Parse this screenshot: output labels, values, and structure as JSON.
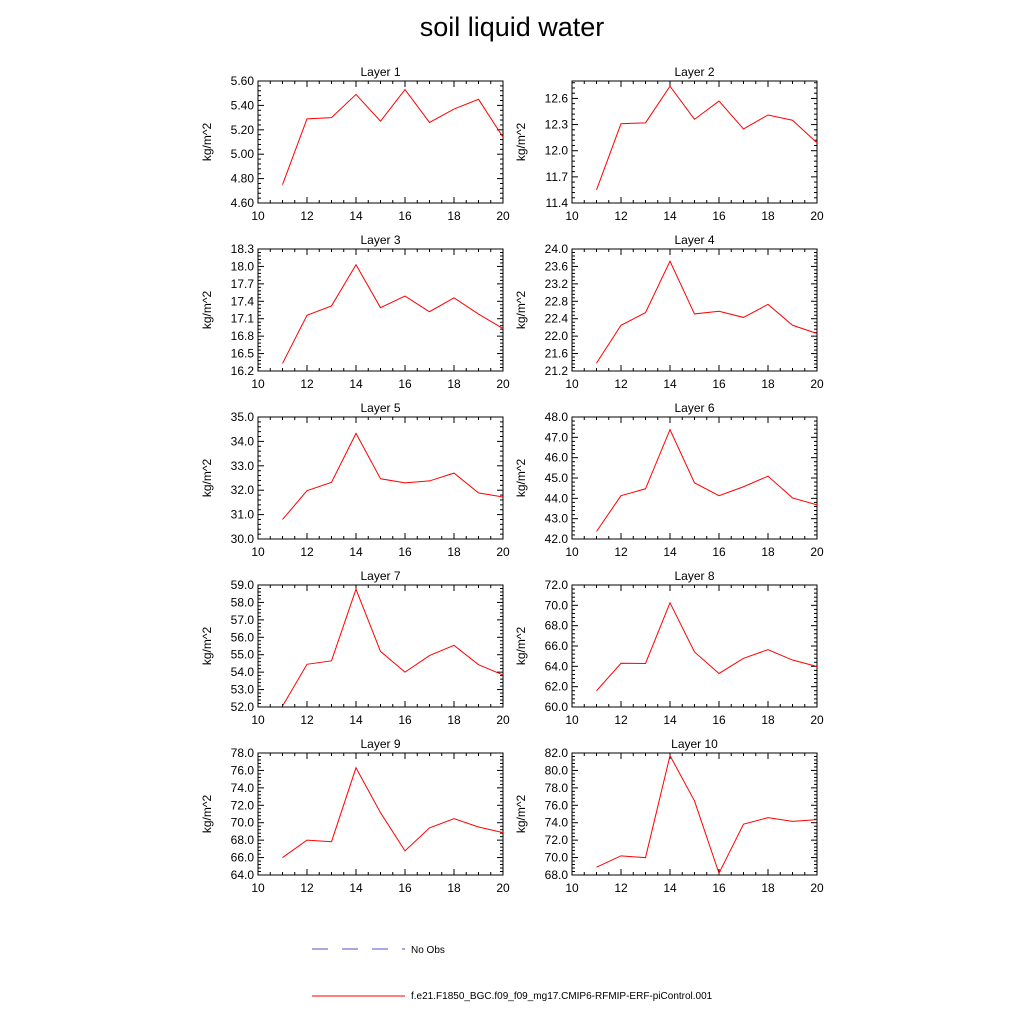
{
  "figure": {
    "title": "soil liquid water"
  },
  "legend": {
    "obs_label": "No Obs",
    "obs_color": "#5050c8",
    "model_label": "f.e21.F1850_BGC.f09_f09_mg17.CMIP6-RFMIP-ERF-piControl.001",
    "model_color": "#ff0000"
  },
  "chart_data": [
    {
      "type": "line",
      "title": "Layer 1",
      "ylabel": "kg/m^2",
      "xlim": [
        10,
        20
      ],
      "ylim": [
        4.6,
        5.6
      ],
      "xticks": [
        "10",
        "12",
        "14",
        "16",
        "18",
        "20"
      ],
      "yticks": [
        "4.60",
        "4.80",
        "5.00",
        "5.20",
        "5.40",
        "5.60"
      ],
      "x": [
        11,
        12,
        13,
        14,
        15,
        16,
        17,
        18,
        19,
        20
      ],
      "values": [
        4.75,
        5.29,
        5.3,
        5.49,
        5.27,
        5.53,
        5.26,
        5.37,
        5.45,
        5.14
      ]
    },
    {
      "type": "line",
      "title": "Layer 2",
      "ylabel": "kg/m^2",
      "xlim": [
        10,
        20
      ],
      "ylim": [
        11.4,
        12.8
      ],
      "xticks": [
        "10",
        "12",
        "14",
        "16",
        "18",
        "20"
      ],
      "yticks": [
        "11.4",
        "11.7",
        "12.0",
        "12.3",
        "12.6"
      ],
      "x": [
        11,
        12,
        13,
        14,
        15,
        16,
        17,
        18,
        19,
        20
      ],
      "values": [
        11.55,
        12.31,
        12.32,
        12.74,
        12.36,
        12.57,
        12.25,
        12.41,
        12.35,
        12.09
      ]
    },
    {
      "type": "line",
      "title": "Layer 3",
      "ylabel": "kg/m^2",
      "xlim": [
        10,
        20
      ],
      "ylim": [
        16.2,
        18.3
      ],
      "xticks": [
        "10",
        "12",
        "14",
        "16",
        "18",
        "20"
      ],
      "yticks": [
        "16.2",
        "16.5",
        "16.8",
        "17.1",
        "17.4",
        "17.7",
        "18.0",
        "18.3"
      ],
      "x": [
        11,
        12,
        13,
        14,
        15,
        16,
        17,
        18,
        19,
        20
      ],
      "values": [
        16.33,
        17.16,
        17.32,
        18.03,
        17.29,
        17.49,
        17.22,
        17.46,
        17.18,
        16.93
      ]
    },
    {
      "type": "line",
      "title": "Layer 4",
      "ylabel": "kg/m^2",
      "xlim": [
        10,
        20
      ],
      "ylim": [
        21.2,
        24.0
      ],
      "xticks": [
        "10",
        "12",
        "14",
        "16",
        "18",
        "20"
      ],
      "yticks": [
        "21.2",
        "21.6",
        "22.0",
        "22.4",
        "22.8",
        "23.2",
        "23.6",
        "24.0"
      ],
      "x": [
        11,
        12,
        13,
        14,
        15,
        16,
        17,
        18,
        19,
        20
      ],
      "values": [
        21.38,
        22.25,
        22.54,
        23.72,
        22.51,
        22.57,
        22.43,
        22.73,
        22.25,
        22.06
      ]
    },
    {
      "type": "line",
      "title": "Layer 5",
      "ylabel": "kg/m^2",
      "xlim": [
        10,
        20
      ],
      "ylim": [
        30.0,
        35.0
      ],
      "xticks": [
        "10",
        "12",
        "14",
        "16",
        "18",
        "20"
      ],
      "yticks": [
        "30.0",
        "31.0",
        "32.0",
        "33.0",
        "34.0",
        "35.0"
      ],
      "x": [
        11,
        12,
        13,
        14,
        15,
        16,
        17,
        18,
        19,
        20
      ],
      "values": [
        30.8,
        31.98,
        32.32,
        34.33,
        32.47,
        32.3,
        32.38,
        32.7,
        31.89,
        31.72
      ]
    },
    {
      "type": "line",
      "title": "Layer 6",
      "ylabel": "kg/m^2",
      "xlim": [
        10,
        20
      ],
      "ylim": [
        42.0,
        48.0
      ],
      "xticks": [
        "10",
        "12",
        "14",
        "16",
        "18",
        "20"
      ],
      "yticks": [
        "42.0",
        "43.0",
        "44.0",
        "45.0",
        "46.0",
        "47.0",
        "48.0"
      ],
      "x": [
        11,
        12,
        13,
        14,
        15,
        16,
        17,
        18,
        19,
        20
      ],
      "values": [
        42.37,
        44.13,
        44.47,
        47.38,
        44.76,
        44.13,
        44.57,
        45.09,
        44.02,
        43.68
      ]
    },
    {
      "type": "line",
      "title": "Layer 7",
      "ylabel": "kg/m^2",
      "xlim": [
        10,
        20
      ],
      "ylim": [
        52.0,
        59.0
      ],
      "xticks": [
        "10",
        "12",
        "14",
        "16",
        "18",
        "20"
      ],
      "yticks": [
        "52.0",
        "53.0",
        "54.0",
        "55.0",
        "56.0",
        "57.0",
        "58.0",
        "59.0"
      ],
      "x": [
        11,
        12,
        13,
        14,
        15,
        16,
        17,
        18,
        19,
        20
      ],
      "values": [
        52.05,
        54.45,
        54.65,
        58.76,
        55.19,
        54.0,
        54.95,
        55.54,
        54.43,
        53.84
      ]
    },
    {
      "type": "line",
      "title": "Layer 8",
      "ylabel": "kg/m^2",
      "xlim": [
        10,
        20
      ],
      "ylim": [
        60.0,
        72.0
      ],
      "xticks": [
        "10",
        "12",
        "14",
        "16",
        "18",
        "20"
      ],
      "yticks": [
        "60.0",
        "62.0",
        "64.0",
        "66.0",
        "68.0",
        "70.0",
        "72.0"
      ],
      "x": [
        11,
        12,
        13,
        14,
        15,
        16,
        17,
        18,
        19,
        20
      ],
      "values": [
        61.59,
        64.3,
        64.28,
        70.25,
        65.41,
        63.3,
        64.79,
        65.64,
        64.62,
        63.98
      ]
    },
    {
      "type": "line",
      "title": "Layer 9",
      "ylabel": "kg/m^2",
      "xlim": [
        10,
        20
      ],
      "ylim": [
        64.0,
        78.0
      ],
      "xticks": [
        "10",
        "12",
        "14",
        "16",
        "18",
        "20"
      ],
      "yticks": [
        "64.0",
        "66.0",
        "68.0",
        "70.0",
        "72.0",
        "74.0",
        "76.0",
        "78.0"
      ],
      "x": [
        11,
        12,
        13,
        14,
        15,
        16,
        17,
        18,
        19,
        20
      ],
      "values": [
        66.0,
        68.0,
        67.82,
        76.3,
        71.15,
        66.77,
        69.4,
        70.46,
        69.51,
        68.86
      ]
    },
    {
      "type": "line",
      "title": "Layer 10",
      "ylabel": "kg/m^2",
      "xlim": [
        10,
        20
      ],
      "ylim": [
        68.0,
        82.0
      ],
      "xticks": [
        "10",
        "12",
        "14",
        "16",
        "18",
        "20"
      ],
      "yticks": [
        "68.0",
        "70.0",
        "72.0",
        "74.0",
        "76.0",
        "78.0",
        "80.0",
        "82.0"
      ],
      "x": [
        11,
        12,
        13,
        14,
        15,
        16,
        17,
        18,
        19,
        20
      ],
      "values": [
        68.9,
        70.2,
        69.99,
        81.7,
        76.5,
        68.2,
        73.83,
        74.58,
        74.16,
        74.36
      ]
    }
  ]
}
